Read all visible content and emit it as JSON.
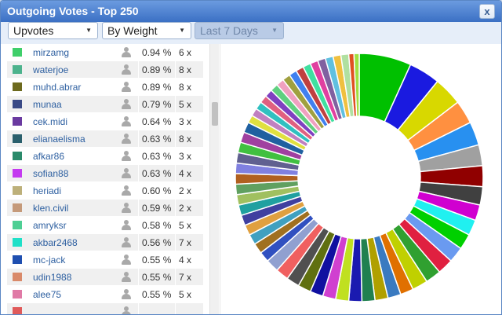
{
  "window": {
    "title": "Outgoing Votes - Top 250",
    "close_label": "x"
  },
  "toolbar": {
    "vote_type": "Upvotes",
    "sort": "By Weight",
    "period": "Last 7 Days"
  },
  "list": {
    "rows": [
      {
        "name": "mirzamg",
        "color": "#3fcf6a",
        "pct": "0.94 %",
        "count": "6 x"
      },
      {
        "name": "waterjoe",
        "color": "#4db38d",
        "pct": "0.89 %",
        "count": "8 x"
      },
      {
        "name": "muhd.abrar",
        "color": "#6d6a1e",
        "pct": "0.89 %",
        "count": "8 x"
      },
      {
        "name": "munaa",
        "color": "#3a4a86",
        "pct": "0.79 %",
        "count": "5 x"
      },
      {
        "name": "cek.midi",
        "color": "#6a3aa0",
        "pct": "0.64 %",
        "count": "3 x"
      },
      {
        "name": "elianaelisma",
        "color": "#2a5f6c",
        "pct": "0.63 %",
        "count": "8 x"
      },
      {
        "name": "afkar86",
        "color": "#2a8a6a",
        "pct": "0.63 %",
        "count": "3 x"
      },
      {
        "name": "sofian88",
        "color": "#c43af0",
        "pct": "0.63 %",
        "count": "4 x"
      },
      {
        "name": "heriadi",
        "color": "#bdb07a",
        "pct": "0.60 %",
        "count": "2 x"
      },
      {
        "name": "klen.civil",
        "color": "#c59a7a",
        "pct": "0.59 %",
        "count": "2 x"
      },
      {
        "name": "amryksr",
        "color": "#4ecf94",
        "pct": "0.58 %",
        "count": "5 x"
      },
      {
        "name": "akbar2468",
        "color": "#1fe0c8",
        "pct": "0.56 %",
        "count": "7 x"
      },
      {
        "name": "mc-jack",
        "color": "#1f4fb0",
        "pct": "0.55 %",
        "count": "4 x"
      },
      {
        "name": "udin1988",
        "color": "#d98a6a",
        "pct": "0.55 %",
        "count": "7 x"
      },
      {
        "name": "alee75",
        "color": "#e07aa6",
        "pct": "0.55 %",
        "count": "5 x"
      },
      {
        "name": "",
        "color": "#e05a5a",
        "pct": "",
        "count": ""
      }
    ]
  },
  "chart_data": {
    "type": "pie",
    "values": [
      10,
      6,
      5.5,
      4.5,
      4.5,
      4,
      4,
      3.5,
      3,
      3,
      3,
      3,
      3,
      3,
      3,
      2.5,
      2.5,
      2.5,
      2.5,
      2.5,
      2.5,
      2.5,
      2.5,
      2.5,
      2.5,
      2.5,
      2.5,
      2,
      2,
      2,
      2,
      2,
      2,
      2,
      2,
      2,
      2,
      2,
      2,
      2,
      2,
      1.5,
      1.5,
      1.5,
      1.5,
      1.5,
      1.5,
      1.5,
      1.5,
      1.5,
      1.5,
      1.5,
      1.5,
      1.5,
      1.5,
      1.5,
      1.5,
      1,
      1
    ],
    "colors": [
      "#00c000",
      "#1a1ae0",
      "#d8d800",
      "#ff9040",
      "#2890f0",
      "#a0a0a0",
      "#900000",
      "#404040",
      "#d000d0",
      "#20f0f0",
      "#00d000",
      "#6a9af0",
      "#e02040",
      "#30a030",
      "#c0d000",
      "#e07000",
      "#3a7ac0",
      "#b0a000",
      "#208050",
      "#1a1ab0",
      "#c0e020",
      "#d040d0",
      "#1010a0",
      "#607010",
      "#505050",
      "#f06060",
      "#90a0d0",
      "#3050c0",
      "#a07020",
      "#40a0c0",
      "#e0a040",
      "#4040a0",
      "#20a0a0",
      "#a0c060",
      "#60a060",
      "#b06020",
      "#8080e0",
      "#606090",
      "#40c040",
      "#a040a0",
      "#2060a0",
      "#e0e040",
      "#c080c0",
      "#30c0c0",
      "#e06080",
      "#8040c0",
      "#60d080",
      "#f0a0c0",
      "#a0a040",
      "#4080f0",
      "#c04040",
      "#40e0a0",
      "#e040a0",
      "#8060a0",
      "#60c0e0",
      "#f0c040",
      "#b0e0a0",
      "#e05020",
      "#a0e040"
    ]
  }
}
